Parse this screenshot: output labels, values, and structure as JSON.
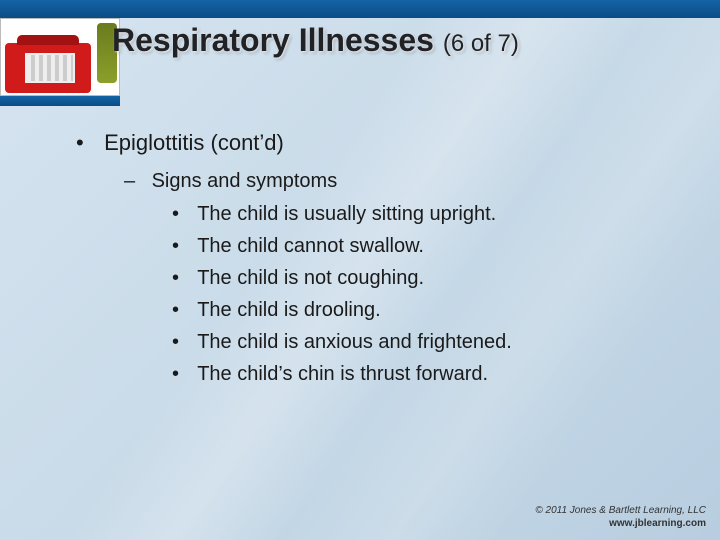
{
  "title_main": "Respiratory Illnesses",
  "title_part": "(6 of 7)",
  "bullets": {
    "lvl1": "Epiglottitis (cont’d)",
    "lvl2": "Signs and symptoms",
    "lvl3": [
      "The child is usually sitting upright.",
      "The child cannot swallow.",
      "The child is not coughing.",
      "The child is drooling.",
      "The child is anxious and frightened.",
      "The child’s chin is thrust forward."
    ]
  },
  "footer": {
    "copyright": "© 2011 Jones & Bartlett Learning, LLC",
    "url": "www.jblearning.com"
  },
  "style": {
    "slide_width": 720,
    "slide_height": 540,
    "bg_gradient": [
      "#d6e4f0",
      "#c8dae8",
      "#b8cee0"
    ],
    "title_color": "#212225",
    "title_fontsize": 32,
    "title_part_fontsize": 24,
    "body_fontsize_lvl1": 22,
    "body_fontsize_lvl2": 20,
    "body_fontsize_lvl3": 20,
    "accent_bar_color": "#0e5796",
    "text_color": "#1a1a1a",
    "footer_fontsize": 10
  }
}
